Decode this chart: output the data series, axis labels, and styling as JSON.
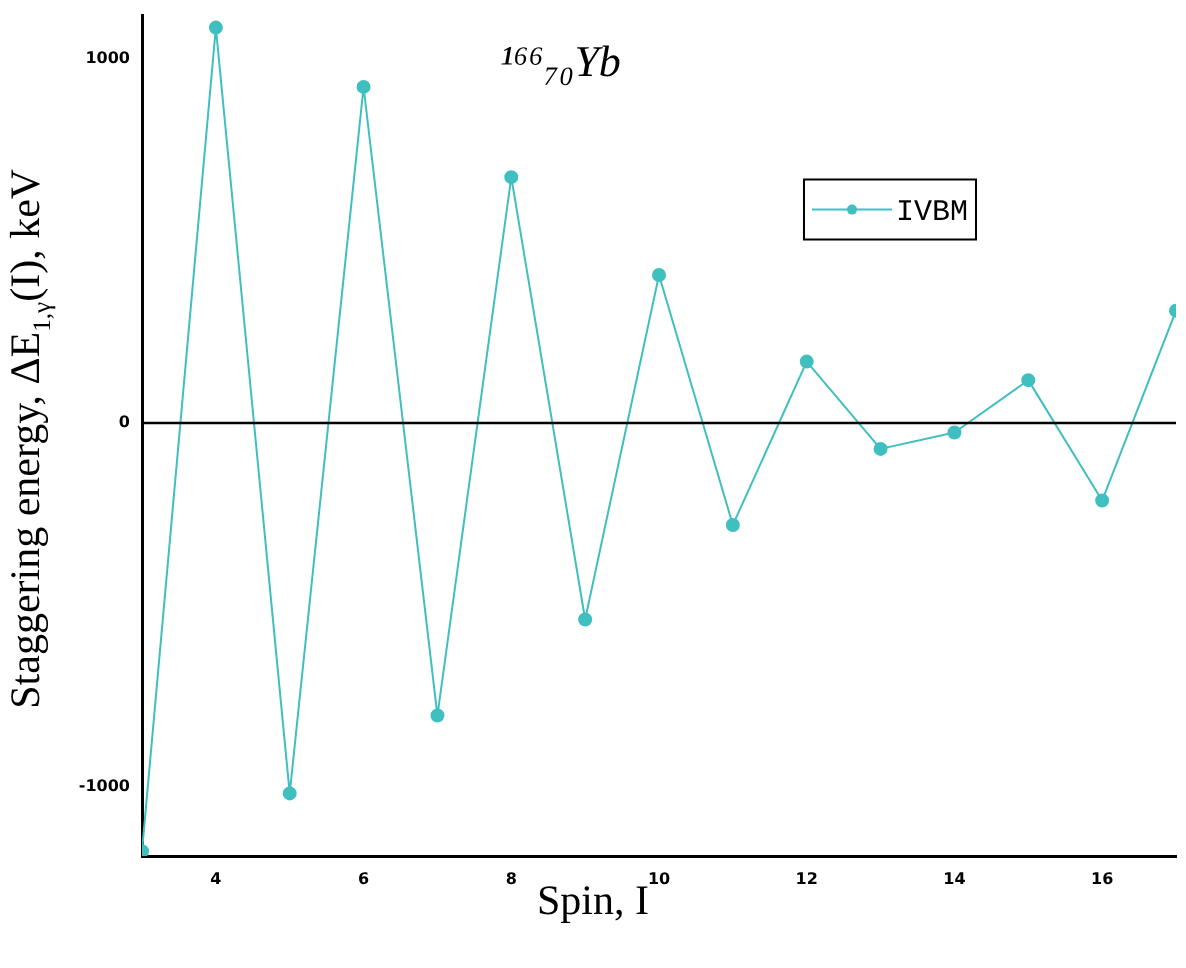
{
  "chart_data": {
    "type": "line",
    "title": "¹⁶⁶₇₀Yb",
    "xlabel": "Spin, I",
    "ylabel": "Staggering energy, ΔE$_{1,γ}$(I), keV",
    "x": [
      3,
      4,
      5,
      6,
      7,
      8,
      9,
      10,
      11,
      12,
      13,
      14,
      15,
      16,
      17
    ],
    "series": [
      {
        "name": "IVBM",
        "color": "#3fbfbf",
        "values": [
          -1177,
          1087,
          -1018,
          924,
          -804,
          676,
          -540,
          407,
          -280,
          169,
          -71,
          -26,
          118,
          -213,
          309
        ]
      }
    ],
    "xlim": [
      3,
      17
    ],
    "xticks": [
      4,
      6,
      8,
      10,
      12,
      14,
      16
    ],
    "ylim": [
      -1190,
      1120
    ],
    "yticks": [
      -1000,
      0,
      1000
    ],
    "ref_lines": [
      {
        "axis": "y",
        "value": 0,
        "color": "#000000"
      }
    ],
    "grid": false,
    "legend": "top right",
    "marker": "circle",
    "line_style": "solid"
  }
}
